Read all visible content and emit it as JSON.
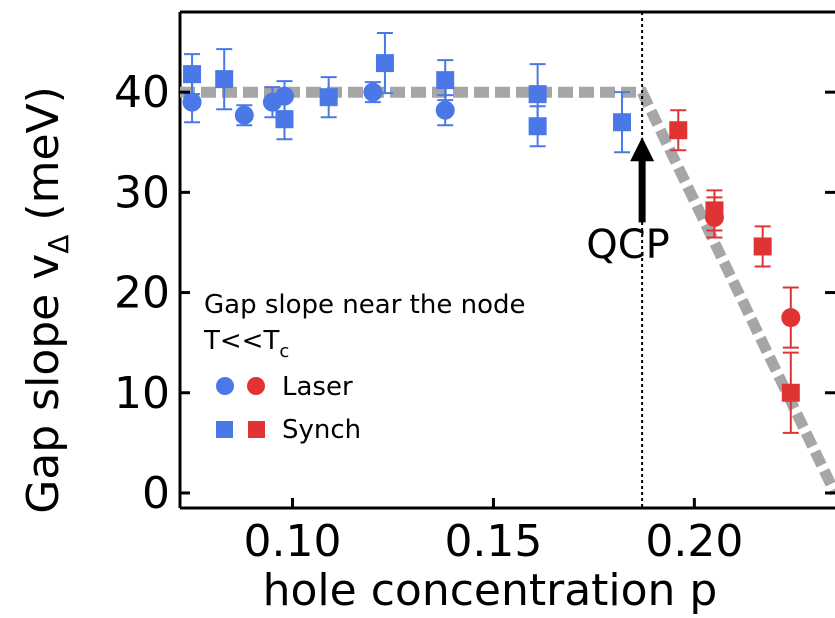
{
  "chart_data": {
    "type": "scatter",
    "xlabel": "hole concentration p",
    "ylabel_main": "Gap slope v",
    "ylabel_sub": "Δ",
    "ylabel_unit": " (meV)",
    "xlim": [
      0.072,
      0.235
    ],
    "ylim": [
      -1.5,
      48
    ],
    "x_ticks": [
      {
        "value": 0.1,
        "label": "0.10"
      },
      {
        "value": 0.15,
        "label": "0.15"
      },
      {
        "value": 0.2,
        "label": "0.20"
      }
    ],
    "y_ticks": [
      {
        "value": 0,
        "label": "0"
      },
      {
        "value": 10,
        "label": "10"
      },
      {
        "value": 20,
        "label": "20"
      },
      {
        "value": 30,
        "label": "30"
      },
      {
        "value": 40,
        "label": "40"
      }
    ],
    "colors": {
      "blue": "#4a78e6",
      "red": "#e03333",
      "guide": "#a6a6a6"
    },
    "series": [
      {
        "marker": "circle",
        "color": "blue",
        "points": [
          {
            "x": 0.075,
            "y": 39.0,
            "err": 2.0
          },
          {
            "x": 0.088,
            "y": 37.7,
            "err": 1.0
          },
          {
            "x": 0.095,
            "y": 39.0,
            "err": 1.5
          },
          {
            "x": 0.098,
            "y": 39.6,
            "err": 1.5
          },
          {
            "x": 0.12,
            "y": 40.0,
            "err": 1.0
          },
          {
            "x": 0.138,
            "y": 38.2,
            "err": 1.5
          }
        ]
      },
      {
        "marker": "square",
        "color": "blue",
        "points": [
          {
            "x": 0.075,
            "y": 41.8,
            "err": 2.0
          },
          {
            "x": 0.083,
            "y": 41.3,
            "err": 3.0
          },
          {
            "x": 0.098,
            "y": 37.3,
            "err": 2.0
          },
          {
            "x": 0.109,
            "y": 39.5,
            "err": 2.0
          },
          {
            "x": 0.123,
            "y": 42.9,
            "err": 3.0
          },
          {
            "x": 0.138,
            "y": 41.2,
            "err": 2.0
          },
          {
            "x": 0.161,
            "y": 39.8,
            "err": 3.0
          },
          {
            "x": 0.161,
            "y": 36.6,
            "err": 2.0
          },
          {
            "x": 0.182,
            "y": 37.0,
            "err": 3.0
          }
        ]
      },
      {
        "marker": "circle",
        "color": "red",
        "points": [
          {
            "x": 0.205,
            "y": 27.5,
            "err": 2.0
          },
          {
            "x": 0.224,
            "y": 17.5,
            "err": 3.0
          }
        ]
      },
      {
        "marker": "square",
        "color": "red",
        "points": [
          {
            "x": 0.196,
            "y": 36.2,
            "err": 2.0
          },
          {
            "x": 0.205,
            "y": 28.2,
            "err": 2.0
          },
          {
            "x": 0.217,
            "y": 24.6,
            "err": 2.0
          },
          {
            "x": 0.224,
            "y": 10.0,
            "err": 4.0
          }
        ]
      }
    ],
    "guide_line": [
      {
        "x": 0.072,
        "y": 40.0
      },
      {
        "x": 0.187,
        "y": 40.0
      },
      {
        "x": 0.235,
        "y": 0.0
      }
    ],
    "qcp": {
      "x": 0.187,
      "label": "QCP",
      "arrow_from_y": 27,
      "arrow_to_y": 35.5
    },
    "legend": {
      "title": "Gap slope near the node",
      "condition_main": "T<<T",
      "condition_sub": "c",
      "items": [
        {
          "label": "Laser",
          "marker": "circle"
        },
        {
          "label": "Synch",
          "marker": "square"
        }
      ]
    }
  }
}
